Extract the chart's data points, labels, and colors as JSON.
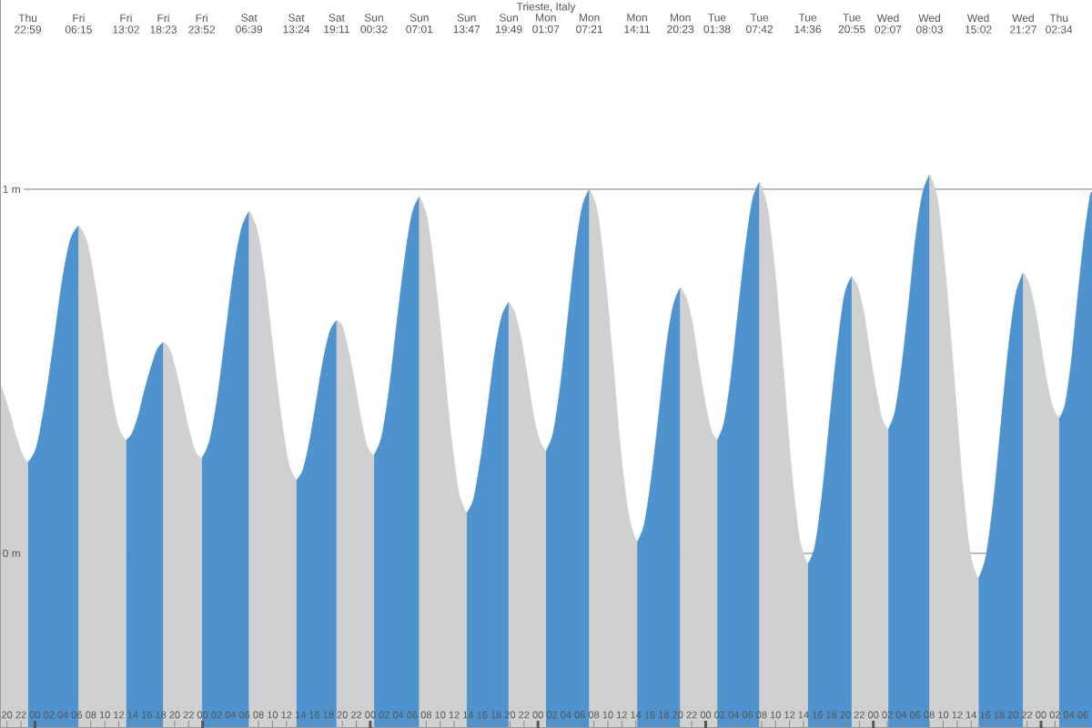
{
  "chart_data": {
    "type": "area",
    "title": "Trieste, Italy",
    "x": [
      19.0,
      20.0,
      20.5,
      21.0,
      21.5,
      22.0,
      22.5,
      22.98,
      24.19,
      25.4,
      26.62,
      27.83,
      29.04,
      30.25,
      31.38,
      32.51,
      33.64,
      34.77,
      35.9,
      37.03,
      37.92,
      38.81,
      39.71,
      40.6,
      41.49,
      42.38,
      43.3,
      44.21,
      45.13,
      46.04,
      46.96,
      47.87,
      49.0,
      50.13,
      51.26,
      52.39,
      53.52,
      54.65,
      55.78,
      56.9,
      58.03,
      59.15,
      60.28,
      61.4,
      62.36,
      63.33,
      64.29,
      65.25,
      66.22,
      67.18,
      68.07,
      68.96,
      69.86,
      70.75,
      71.64,
      72.53,
      73.61,
      74.69,
      75.78,
      76.86,
      77.94,
      79.02,
      80.15,
      81.27,
      82.4,
      83.53,
      84.65,
      85.78,
      86.79,
      87.79,
      88.8,
      89.81,
      90.81,
      91.82,
      92.7,
      93.59,
      94.47,
      95.35,
      96.24,
      97.12,
      98.16,
      99.2,
      100.24,
      101.27,
      102.31,
      103.35,
      104.49,
      105.63,
      106.77,
      107.9,
      109.04,
      110.18,
      111.21,
      112.25,
      113.28,
      114.31,
      115.35,
      116.38,
      117.26,
      118.13,
      119.01,
      119.88,
      120.76,
      121.63,
      122.64,
      123.65,
      124.67,
      125.68,
      126.69,
      127.7,
      128.85,
      130.0,
      131.15,
      132.3,
      133.45,
      134.6,
      135.65,
      136.71,
      137.76,
      138.81,
      139.87,
      140.92,
      141.79,
      142.65,
      143.52,
      144.39,
      145.25,
      146.12,
      147.11,
      148.1,
      149.09,
      150.07,
      151.06,
      152.05,
      153.21,
      154.38,
      155.54,
      156.7,
      157.87,
      159.03,
      160.1,
      161.17,
      162.24,
      163.31,
      164.38,
      165.45,
      166.3,
      167.16,
      168.01,
      168.86,
      169.72,
      170.57,
      171.46,
      172.35,
      173.23,
      174.12,
      175.01,
      175.3
    ],
    "xlim": [
      19.0,
      175.3
    ],
    "xticks": [
      {
        "value": 20,
        "label": "20"
      },
      {
        "value": 22,
        "label": "22"
      },
      {
        "value": 24,
        "label": "00"
      },
      {
        "value": 26,
        "label": "02"
      },
      {
        "value": 28,
        "label": "04"
      },
      {
        "value": 30,
        "label": "06"
      },
      {
        "value": 32,
        "label": "08"
      },
      {
        "value": 34,
        "label": "10"
      },
      {
        "value": 36,
        "label": "12"
      },
      {
        "value": 38,
        "label": "14"
      },
      {
        "value": 40,
        "label": "16"
      },
      {
        "value": 42,
        "label": "18"
      },
      {
        "value": 44,
        "label": "20"
      },
      {
        "value": 46,
        "label": "22"
      },
      {
        "value": 48,
        "label": "00"
      },
      {
        "value": 50,
        "label": "02"
      },
      {
        "value": 52,
        "label": "04"
      },
      {
        "value": 54,
        "label": "06"
      },
      {
        "value": 56,
        "label": "08"
      },
      {
        "value": 58,
        "label": "10"
      },
      {
        "value": 60,
        "label": "12"
      },
      {
        "value": 62,
        "label": "14"
      },
      {
        "value": 64,
        "label": "16"
      },
      {
        "value": 66,
        "label": "18"
      },
      {
        "value": 68,
        "label": "20"
      },
      {
        "value": 70,
        "label": "22"
      },
      {
        "value": 72,
        "label": "00"
      },
      {
        "value": 74,
        "label": "02"
      },
      {
        "value": 76,
        "label": "04"
      },
      {
        "value": 78,
        "label": "06"
      },
      {
        "value": 80,
        "label": "08"
      },
      {
        "value": 82,
        "label": "10"
      },
      {
        "value": 84,
        "label": "12"
      },
      {
        "value": 86,
        "label": "14"
      },
      {
        "value": 88,
        "label": "16"
      },
      {
        "value": 90,
        "label": "18"
      },
      {
        "value": 92,
        "label": "20"
      },
      {
        "value": 94,
        "label": "22"
      },
      {
        "value": 96,
        "label": "00"
      },
      {
        "value": 98,
        "label": "02"
      },
      {
        "value": 100,
        "label": "04"
      },
      {
        "value": 102,
        "label": "06"
      },
      {
        "value": 104,
        "label": "08"
      },
      {
        "value": 106,
        "label": "10"
      },
      {
        "value": 108,
        "label": "12"
      },
      {
        "value": 110,
        "label": "14"
      },
      {
        "value": 112,
        "label": "16"
      },
      {
        "value": 114,
        "label": "18"
      },
      {
        "value": 116,
        "label": "20"
      },
      {
        "value": 118,
        "label": "22"
      },
      {
        "value": 120,
        "label": "00"
      },
      {
        "value": 122,
        "label": "02"
      },
      {
        "value": 124,
        "label": "04"
      },
      {
        "value": 126,
        "label": "06"
      },
      {
        "value": 128,
        "label": "08"
      },
      {
        "value": 130,
        "label": "10"
      },
      {
        "value": 132,
        "label": "12"
      },
      {
        "value": 134,
        "label": "14"
      },
      {
        "value": 136,
        "label": "16"
      },
      {
        "value": 138,
        "label": "18"
      },
      {
        "value": 140,
        "label": "20"
      },
      {
        "value": 142,
        "label": "22"
      },
      {
        "value": 144,
        "label": "00"
      },
      {
        "value": 146,
        "label": "02"
      },
      {
        "value": 148,
        "label": "04"
      },
      {
        "value": 150,
        "label": "06"
      },
      {
        "value": 152,
        "label": "08"
      },
      {
        "value": 154,
        "label": "10"
      },
      {
        "value": 156,
        "label": "12"
      },
      {
        "value": 158,
        "label": "14"
      },
      {
        "value": 160,
        "label": "16"
      },
      {
        "value": 162,
        "label": "18"
      },
      {
        "value": 164,
        "label": "20"
      },
      {
        "value": 166,
        "label": "22"
      },
      {
        "value": 168,
        "label": "00"
      },
      {
        "value": 170,
        "label": "02"
      },
      {
        "value": 172,
        "label": "04"
      },
      {
        "value": 174,
        "label": "06"
      }
    ],
    "annotations": [
      "Thu 22:59",
      "Fri 06:15",
      "Fri 13:02",
      "Fri 18:23",
      "Fri 23:52",
      "Sat 06:39",
      "Sat 13:24",
      "Sat 19:11",
      "Sun 00:32",
      "Sun 07:01",
      "Sun 13:47",
      "Sun 19:49",
      "Mon 01:07",
      "Mon 07:21",
      "Mon 14:11",
      "Mon 20:23",
      "Tue 01:38",
      "Tue 07:42",
      "Tue 14:36",
      "Tue 20:55",
      "Wed 02:07",
      "Wed 08:03",
      "Wed 15:02",
      "Wed 21:27",
      "Thu 02:34"
    ],
    "ylim": [
      -0.48,
      1.52
    ],
    "yticks": [
      {
        "value": 0,
        "label": "0 m"
      },
      {
        "value": 1,
        "label": "1 m"
      }
    ],
    "grid": "y",
    "series": [
      {
        "color": "#4f93ce",
        "values": [
          null,
          null,
          null,
          null,
          null,
          null,
          null,
          0.25,
          0.29,
          0.41,
          0.57,
          0.74,
          0.86,
          0.9,
          null,
          null,
          null,
          null,
          null,
          0.31,
          0.33,
          0.38,
          0.45,
          0.51,
          0.56,
          0.58,
          null,
          null,
          null,
          null,
          null,
          0.26,
          0.31,
          0.43,
          0.6,
          0.77,
          0.89,
          0.94,
          null,
          null,
          null,
          null,
          null,
          0.2,
          0.23,
          0.31,
          0.42,
          0.53,
          0.61,
          0.64,
          null,
          null,
          null,
          null,
          null,
          0.27,
          0.32,
          0.45,
          0.63,
          0.8,
          0.93,
          0.98,
          null,
          null,
          null,
          null,
          null,
          0.11,
          0.15,
          0.26,
          0.4,
          0.55,
          0.65,
          0.69,
          null,
          null,
          null,
          null,
          null,
          0.28,
          0.33,
          0.46,
          0.64,
          0.82,
          0.95,
          1.0,
          null,
          null,
          null,
          null,
          null,
          0.03,
          0.08,
          0.21,
          0.38,
          0.56,
          0.68,
          0.73,
          null,
          null,
          null,
          null,
          null,
          0.31,
          0.36,
          0.49,
          0.67,
          0.84,
          0.97,
          1.02,
          null,
          null,
          null,
          null,
          null,
          -0.03,
          0.02,
          0.17,
          0.37,
          0.56,
          0.71,
          0.76,
          null,
          null,
          null,
          null,
          null,
          0.34,
          0.39,
          0.52,
          0.69,
          0.87,
          0.99,
          1.04,
          null,
          null,
          null,
          null,
          null,
          -0.07,
          -0.01,
          0.14,
          0.35,
          0.56,
          0.71,
          0.77,
          null,
          null,
          null,
          null,
          null,
          0.37,
          0.41,
          0.53,
          0.7,
          0.86,
          0.98,
          0.99
        ]
      },
      {
        "color": "#d0d0d0",
        "values": [
          0.47,
          0.41,
          0.38,
          0.34,
          0.31,
          0.28,
          0.26,
          0.25,
          null,
          null,
          null,
          null,
          null,
          0.9,
          0.86,
          0.75,
          0.61,
          0.46,
          0.35,
          0.31,
          null,
          null,
          null,
          null,
          null,
          0.58,
          0.56,
          0.5,
          0.42,
          0.34,
          0.28,
          0.26,
          null,
          null,
          null,
          null,
          null,
          0.94,
          0.89,
          0.76,
          0.57,
          0.39,
          0.25,
          0.2,
          null,
          null,
          null,
          null,
          null,
          0.64,
          0.62,
          0.55,
          0.46,
          0.36,
          0.29,
          0.27,
          null,
          null,
          null,
          null,
          null,
          0.98,
          0.92,
          0.76,
          0.55,
          0.33,
          0.17,
          0.11,
          null,
          null,
          null,
          null,
          null,
          0.69,
          0.66,
          0.59,
          0.49,
          0.38,
          0.31,
          0.28,
          null,
          null,
          null,
          null,
          null,
          1.0,
          0.94,
          0.76,
          0.52,
          0.27,
          0.1,
          0.03,
          null,
          null,
          null,
          null,
          null,
          0.73,
          0.7,
          0.63,
          0.52,
          0.42,
          0.34,
          0.31,
          null,
          null,
          null,
          null,
          null,
          1.02,
          0.95,
          0.76,
          0.5,
          0.23,
          0.04,
          -0.03,
          null,
          null,
          null,
          null,
          null,
          0.76,
          0.73,
          0.66,
          0.55,
          0.45,
          0.37,
          0.34,
          null,
          null,
          null,
          null,
          null,
          1.04,
          0.97,
          0.76,
          0.49,
          0.21,
          0.0,
          -0.07,
          null,
          null,
          null,
          null,
          null,
          0.77,
          0.74,
          0.67,
          0.57,
          0.47,
          0.4,
          0.37,
          null,
          null,
          null,
          null,
          null,
          null
        ]
      }
    ]
  }
}
